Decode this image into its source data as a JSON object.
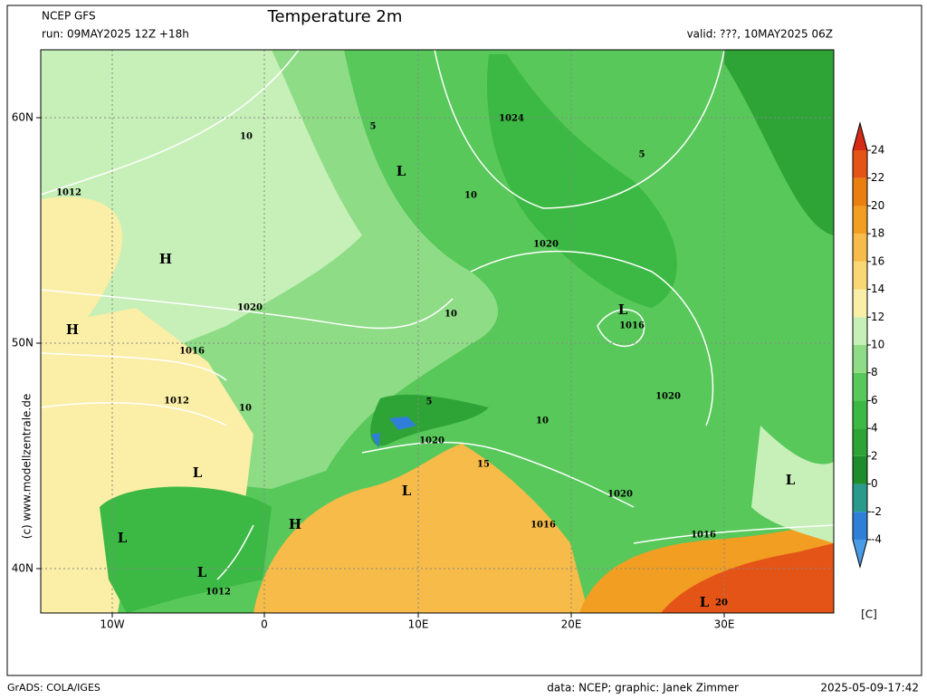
{
  "header": {
    "source": "NCEP GFS",
    "run": "run: 09MAY2025 12Z +18h",
    "title": "Temperature 2m",
    "valid": "valid: ???, 10MAY2025 06Z"
  },
  "axes": {
    "lat_labels": [
      "60N",
      "50N",
      "40N"
    ],
    "lon_labels": [
      "10W",
      "0",
      "10E",
      "20E",
      "30E"
    ]
  },
  "watermark": "(c) www.modellzentrale.de",
  "colorbar": {
    "unit": "[C]",
    "levels": [
      -4,
      -2,
      0,
      2,
      4,
      6,
      8,
      10,
      12,
      14,
      16,
      18,
      20,
      22,
      24
    ],
    "colors": [
      "#4a9be6",
      "#2f7fd8",
      "#2a9a8c",
      "#1e8c2a",
      "#2ea436",
      "#3cb944",
      "#58c85a",
      "#8fdc86",
      "#c6f0b8",
      "#fbeea6",
      "#f8d774",
      "#f6bb48",
      "#f19e22",
      "#e97f10",
      "#e45416",
      "#d42a16"
    ]
  },
  "map_labels": [
    "1024",
    "1012",
    "L",
    "H",
    "1020",
    "1020",
    "L",
    "1016",
    "H",
    "1016",
    "1012",
    "1020",
    "1020",
    "L",
    "L",
    "1020",
    "L",
    "H",
    "1016",
    "1016",
    "L",
    "L",
    "1012",
    "L",
    "10",
    "5",
    "10",
    "5",
    "10",
    "10",
    "5",
    "15",
    "10",
    "20"
  ],
  "footer": {
    "left": "GrADS: COLA/IGES",
    "credit": "data: NCEP; graphic: Janek Zimmer",
    "timestamp": "2025-05-09-17:42"
  }
}
